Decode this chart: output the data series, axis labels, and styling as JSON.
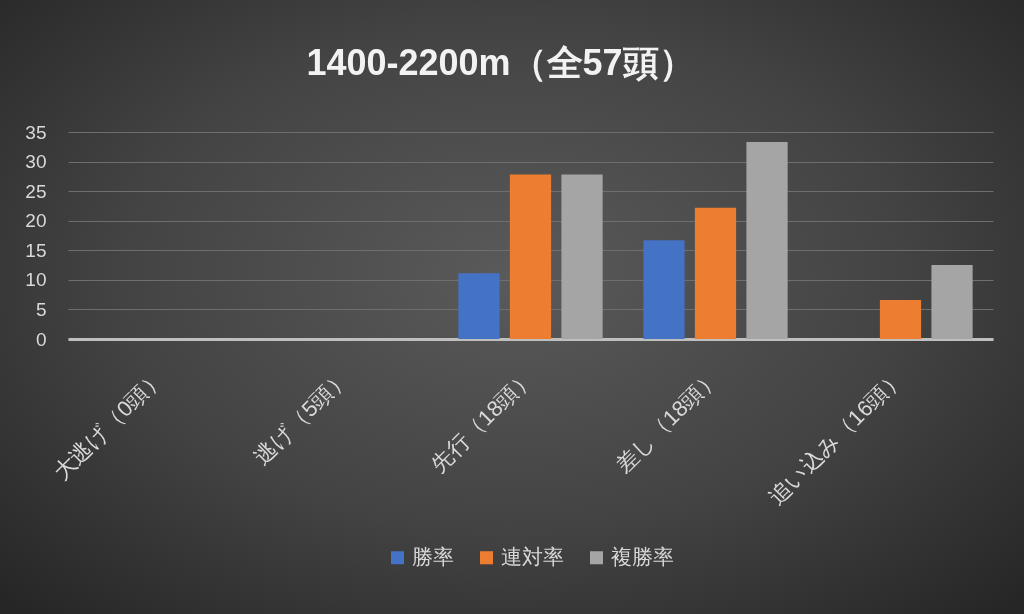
{
  "chart_data": {
    "type": "bar",
    "title": "1400-2200m（全57頭）",
    "categories": [
      "大逃げ（0頭）",
      "逃げ（5頭）",
      "先行（18頭）",
      "差し（18頭）",
      "追い込み（16頭）"
    ],
    "series": [
      {
        "name": "勝率",
        "color": "#4472c4",
        "values": [
          0,
          0,
          11.1,
          16.7,
          0
        ]
      },
      {
        "name": "連対率",
        "color": "#ed7d31",
        "values": [
          0,
          0,
          27.8,
          22.2,
          6.6
        ]
      },
      {
        "name": "複勝率",
        "color": "#a5a5a5",
        "values": [
          0,
          0,
          27.8,
          33.3,
          12.5
        ]
      }
    ],
    "ylim": [
      0,
      35
    ],
    "yticks": [
      0,
      5,
      10,
      15,
      20,
      25,
      30,
      35
    ],
    "grid": "y",
    "legend": "bottom"
  }
}
